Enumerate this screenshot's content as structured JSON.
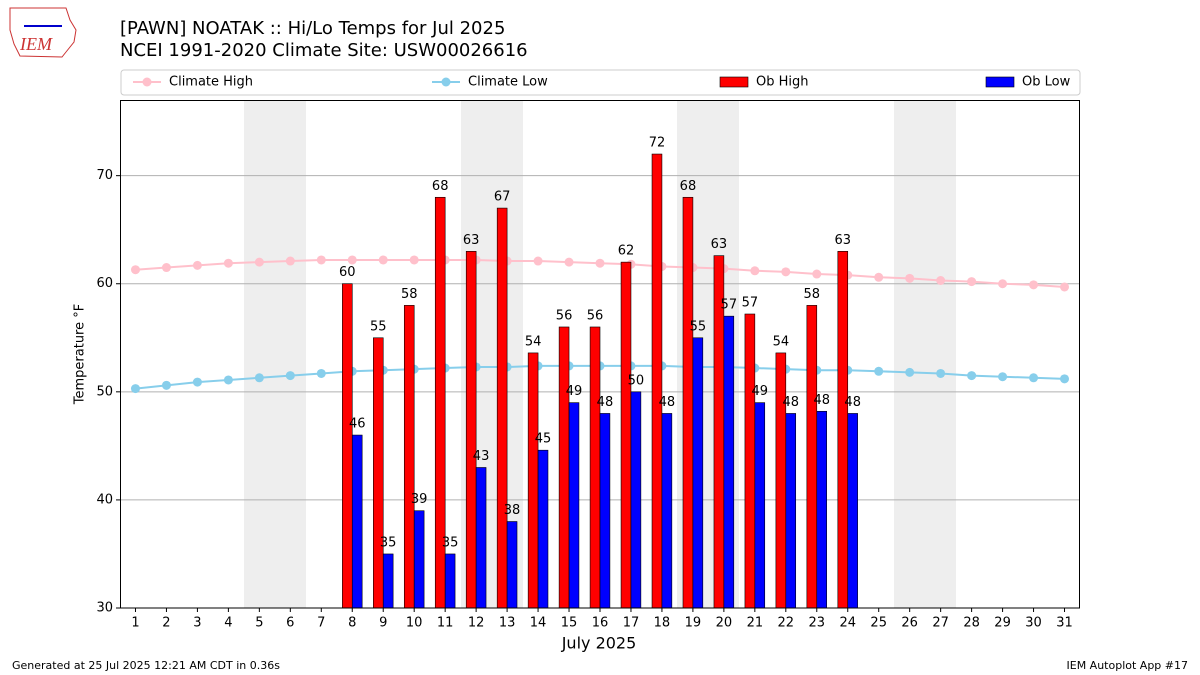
{
  "logo_text": "IEM",
  "footer_left": "Generated at 25 Jul 2025 12:21 AM CDT in 0.36s",
  "footer_right": "IEM Autoplot App #17",
  "chart_data": {
    "type": "bar",
    "title": "[PAWN] NOATAK :: Hi/Lo Temps for Jul 2025",
    "subtitle": "NCEI 1991-2020 Climate Site: USW00026616",
    "x_label": "July 2025",
    "y_label": "Temperature °F",
    "x": [
      1,
      2,
      3,
      4,
      5,
      6,
      7,
      8,
      9,
      10,
      11,
      12,
      13,
      14,
      15,
      16,
      17,
      18,
      19,
      20,
      21,
      22,
      23,
      24,
      25,
      26,
      27,
      28,
      29,
      30,
      31
    ],
    "xlim": [
      0.5,
      31.5
    ],
    "xticks": [
      1,
      2,
      3,
      4,
      5,
      6,
      7,
      8,
      9,
      10,
      11,
      12,
      13,
      14,
      15,
      16,
      17,
      18,
      19,
      20,
      21,
      22,
      23,
      24,
      25,
      26,
      27,
      28,
      29,
      30,
      31
    ],
    "ylim": [
      30,
      77
    ],
    "yticks": [
      30,
      40,
      50,
      60,
      70
    ],
    "grid": true,
    "legend": "top",
    "series": [
      {
        "name": "Climate High",
        "type": "line",
        "color": "#ffc0cb",
        "values": [
          61.3,
          61.5,
          61.7,
          61.9,
          62.0,
          62.1,
          62.2,
          62.2,
          62.2,
          62.2,
          62.2,
          62.2,
          62.1,
          62.1,
          62.0,
          61.9,
          61.8,
          61.6,
          61.5,
          61.4,
          61.2,
          61.1,
          60.9,
          60.8,
          60.6,
          60.5,
          60.3,
          60.2,
          60.0,
          59.9,
          59.7
        ]
      },
      {
        "name": "Climate Low",
        "type": "line",
        "color": "#87ceeb",
        "values": [
          50.3,
          50.6,
          50.9,
          51.1,
          51.3,
          51.5,
          51.7,
          51.9,
          52.0,
          52.1,
          52.2,
          52.3,
          52.3,
          52.4,
          52.4,
          52.4,
          52.4,
          52.4,
          52.3,
          52.3,
          52.2,
          52.1,
          52.0,
          52.0,
          51.9,
          51.8,
          51.7,
          51.5,
          51.4,
          51.3,
          51.2
        ]
      },
      {
        "name": "Ob High",
        "type": "bar",
        "color": "#ff0000",
        "values": [
          null,
          null,
          null,
          null,
          null,
          null,
          null,
          60,
          55,
          58,
          68,
          63,
          67,
          53.6,
          56,
          56,
          62,
          72,
          68,
          62.6,
          57.2,
          53.6,
          58,
          63,
          null,
          null,
          null,
          null,
          null,
          null,
          null
        ],
        "value_labels": [
          null,
          null,
          null,
          null,
          null,
          null,
          null,
          "60",
          "55",
          "58",
          "68",
          "63",
          "67",
          "54",
          "56",
          "56",
          "62",
          "72",
          "68",
          "63",
          "57",
          "54",
          "58",
          "63",
          null,
          null,
          null,
          null,
          null,
          null,
          null
        ]
      },
      {
        "name": "Ob Low",
        "type": "bar",
        "color": "#0000ff",
        "values": [
          null,
          null,
          null,
          null,
          null,
          null,
          null,
          46,
          35,
          39,
          35,
          43,
          38,
          44.6,
          49,
          48,
          50,
          48,
          55,
          57,
          49,
          48,
          48.2,
          48,
          null,
          null,
          null,
          null,
          null,
          null,
          null
        ],
        "value_labels": [
          null,
          null,
          null,
          null,
          null,
          null,
          null,
          "46",
          "35",
          "39",
          "35",
          "43",
          "38",
          "45",
          "49",
          "48",
          "50",
          "48",
          "55",
          "57",
          "49",
          "48",
          "48",
          "48",
          null,
          null,
          null,
          null,
          null,
          null,
          null
        ]
      }
    ]
  }
}
